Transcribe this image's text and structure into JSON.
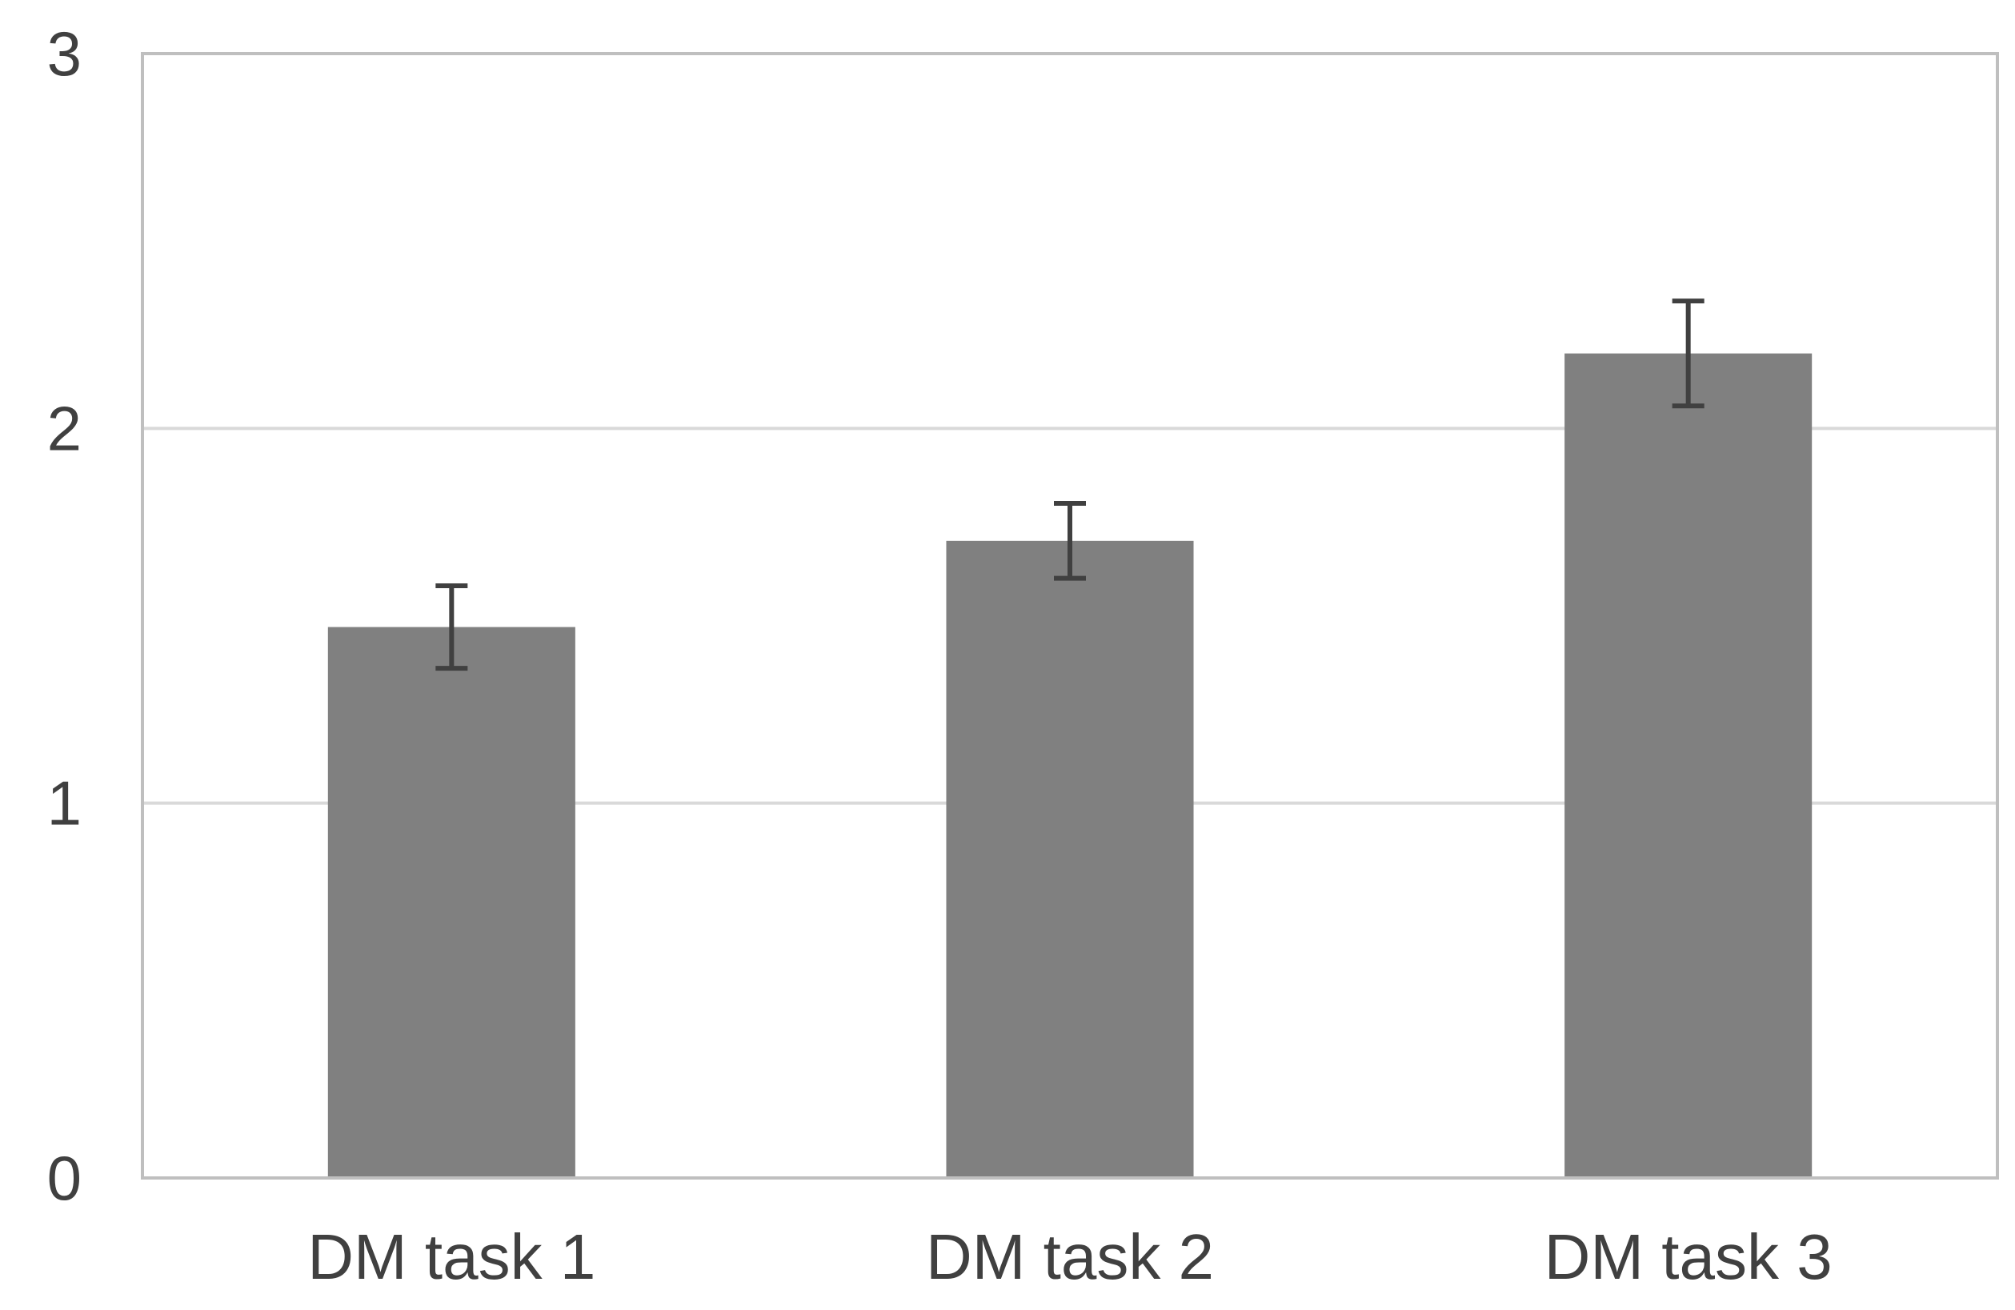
{
  "chart_data": {
    "type": "bar",
    "categories": [
      "DM task 1",
      "DM task 2",
      "DM task 3"
    ],
    "values": [
      1.47,
      1.7,
      2.2
    ],
    "error": [
      0.11,
      0.1,
      0.14
    ],
    "ylim": [
      0,
      3
    ],
    "yticks": [
      "0",
      "1",
      "2",
      "3"
    ],
    "grid": true,
    "legend": "none",
    "title": "",
    "xlabel": "",
    "ylabel": "",
    "colors": {
      "bar": "#808080",
      "error_bar": "#404040",
      "gridline": "#d9d9d9",
      "frame": "#bfbfbf",
      "text": "#404040"
    }
  }
}
